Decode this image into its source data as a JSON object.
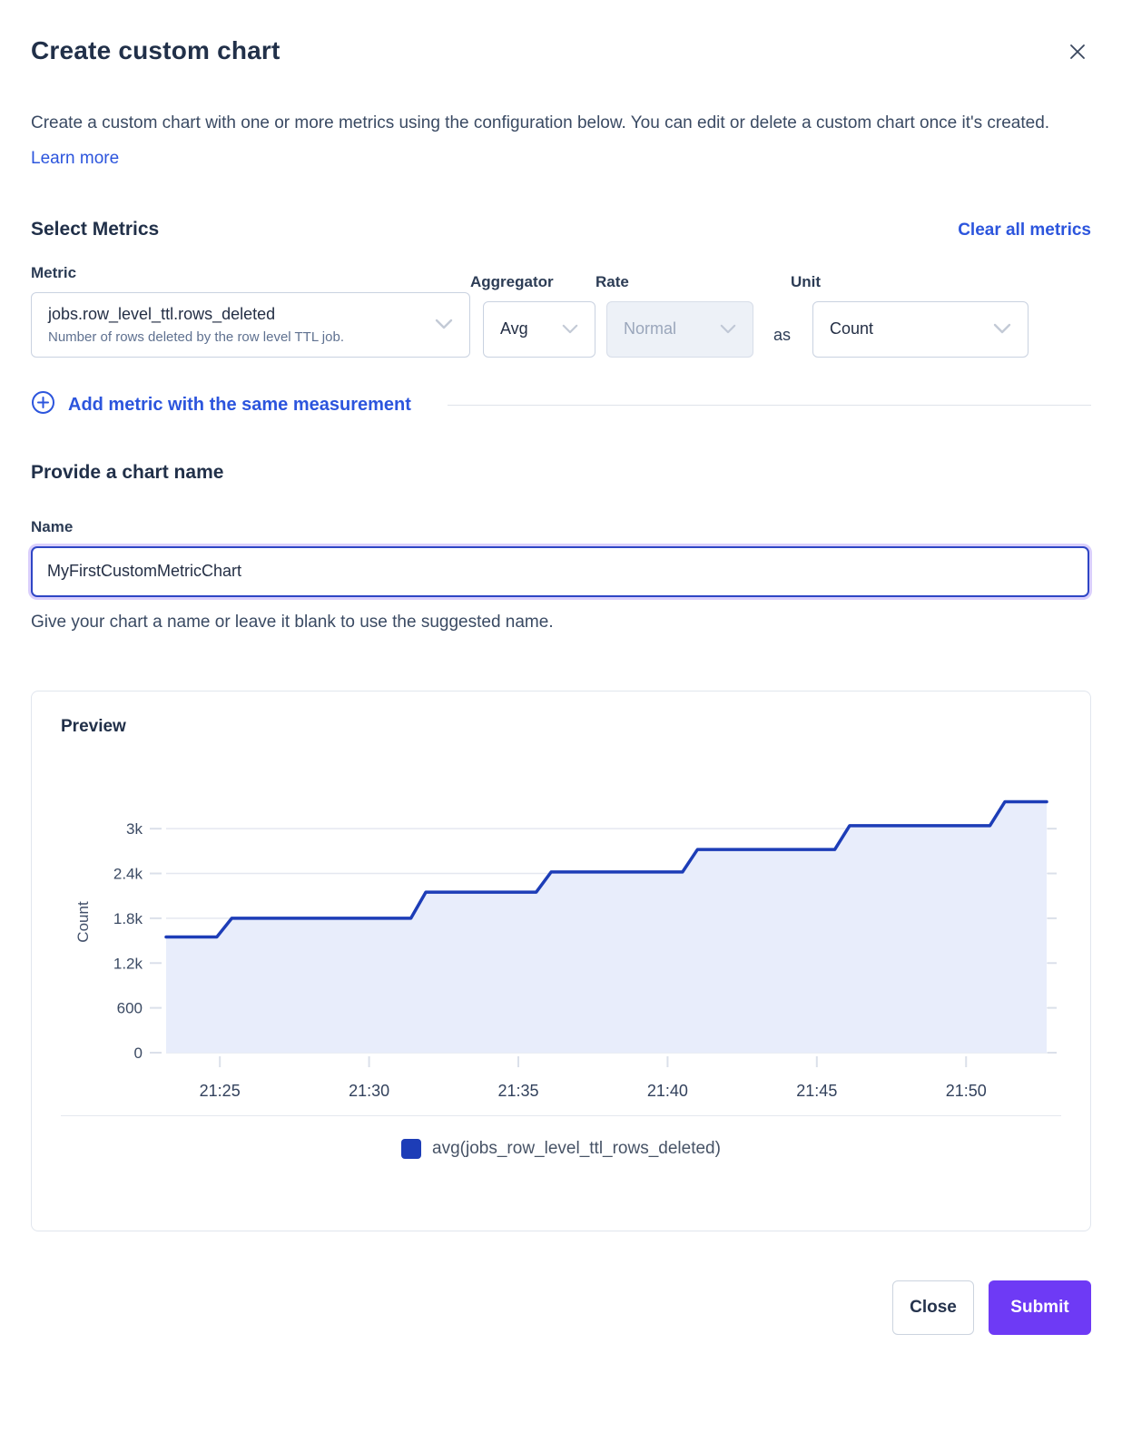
{
  "dialog": {
    "title": "Create custom chart",
    "description": "Create a custom chart with one or more metrics using the configuration below. You can edit or delete a custom chart once it's created.",
    "learn_more_label": "Learn more"
  },
  "metrics_section": {
    "heading": "Select Metrics",
    "clear_all_label": "Clear all metrics",
    "metric_label": "Metric",
    "aggregator_label": "Aggregator",
    "rate_label": "Rate",
    "unit_label": "Unit",
    "metric_value": "jobs.row_level_ttl.rows_deleted",
    "metric_description": "Number of rows deleted by the row level TTL job.",
    "aggregator_value": "Avg",
    "rate_value": "Normal",
    "rate_disabled": true,
    "as_label": "as",
    "unit_value": "Count",
    "add_metric_label": "Add metric with the same measurement"
  },
  "name_section": {
    "heading": "Provide a chart name",
    "label": "Name",
    "value": "MyFirstCustomMetricChart",
    "helper": "Give your chart a name or leave it blank to use the suggested name."
  },
  "preview": {
    "heading": "Preview"
  },
  "footer": {
    "close_label": "Close",
    "submit_label": "Submit"
  },
  "colors": {
    "accent_link": "#2c55dd",
    "submit_purple": "#6e3af5",
    "chart_line": "#1d3db7",
    "chart_fill": "#e8edfb",
    "gridline": "#e4e8f0"
  },
  "chart_data": {
    "type": "area",
    "title": "Preview",
    "xlabel": "",
    "ylabel": "Count",
    "x_ticks": [
      "21:25",
      "21:30",
      "21:35",
      "21:40",
      "21:45",
      "21:50"
    ],
    "x_tick_minutes": [
      25,
      30,
      35,
      40,
      45,
      50
    ],
    "y_ticks": [
      "0",
      "600",
      "1.2k",
      "1.8k",
      "2.4k",
      "3k"
    ],
    "y_tick_values": [
      0,
      600,
      1200,
      1800,
      2400,
      3000
    ],
    "ylim": [
      0,
      3500
    ],
    "x_range_minutes": [
      23.2,
      52.7
    ],
    "grid": true,
    "legend_position": "bottom",
    "series": [
      {
        "name": "avg(jobs_row_level_ttl_rows_deleted)",
        "color": "#1d3db7",
        "fill": "#e8edfb",
        "step_points": [
          {
            "x": 23.2,
            "y": 1550
          },
          {
            "x": 24.9,
            "y": 1550
          },
          {
            "x": 25.4,
            "y": 1800
          },
          {
            "x": 31.4,
            "y": 1800
          },
          {
            "x": 31.9,
            "y": 2150
          },
          {
            "x": 35.6,
            "y": 2150
          },
          {
            "x": 36.1,
            "y": 2420
          },
          {
            "x": 40.5,
            "y": 2420
          },
          {
            "x": 41.0,
            "y": 2720
          },
          {
            "x": 45.6,
            "y": 2720
          },
          {
            "x": 46.1,
            "y": 3040
          },
          {
            "x": 50.8,
            "y": 3040
          },
          {
            "x": 51.3,
            "y": 3360
          },
          {
            "x": 52.7,
            "y": 3360
          }
        ]
      }
    ]
  }
}
